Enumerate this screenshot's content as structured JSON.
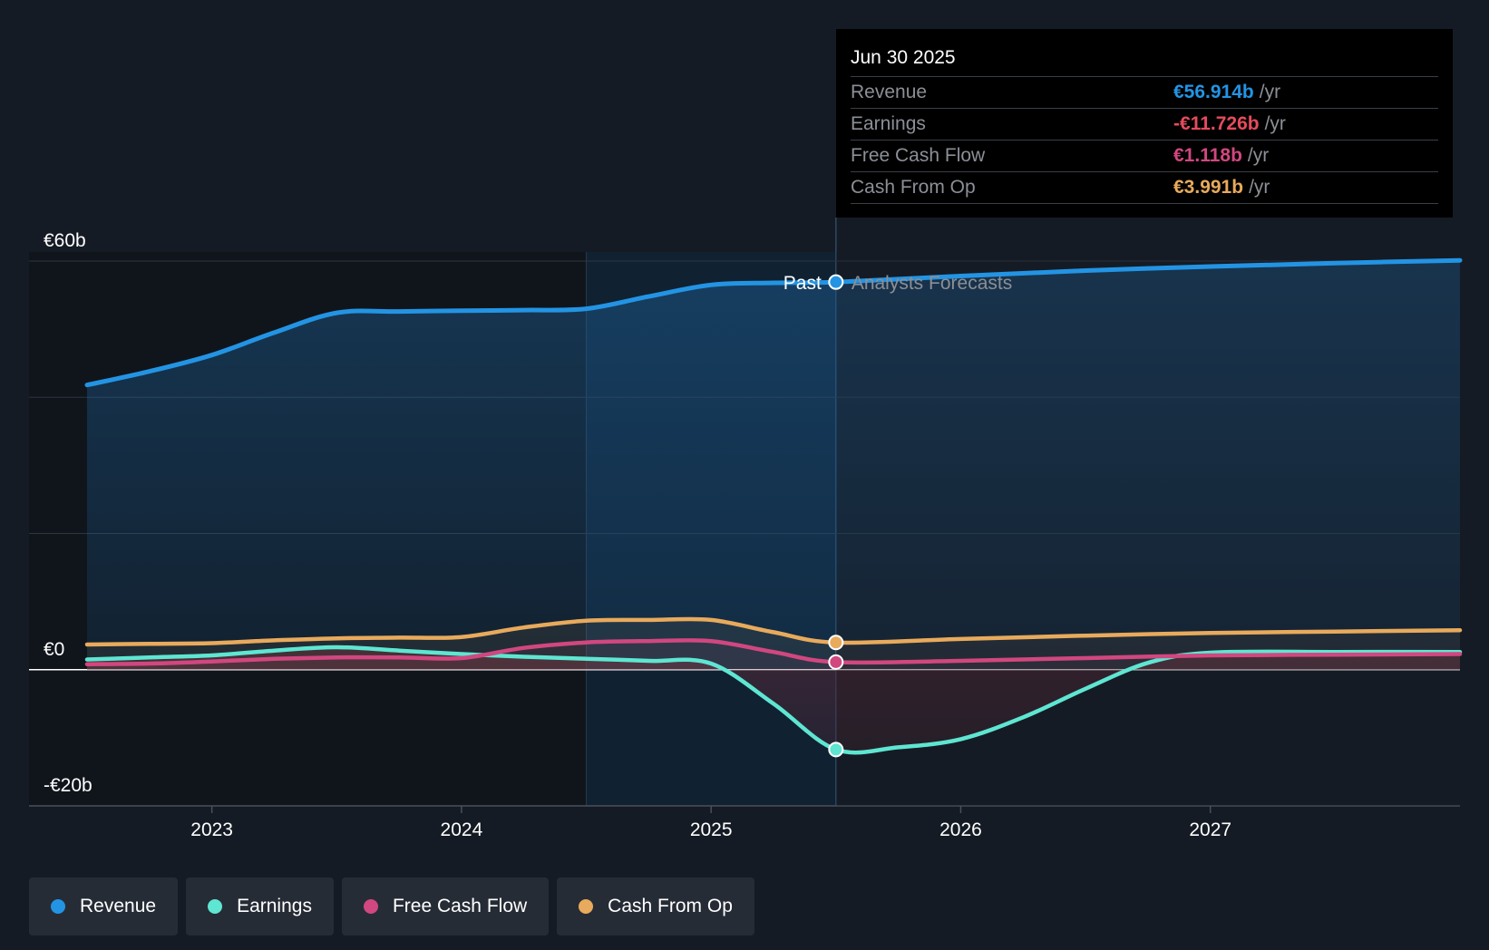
{
  "chart_data": {
    "type": "line",
    "y_tick_labels": [
      "€60b",
      "€0",
      "-€20b"
    ],
    "ylim": [
      -20,
      60
    ],
    "x_tick_labels": [
      "2023",
      "2024",
      "2025",
      "2026",
      "2027"
    ],
    "divider_labels": {
      "past": "Past",
      "forecast": "Analysts Forecasts"
    },
    "past_cutoff": 2025.5,
    "series": [
      {
        "name": "Revenue",
        "color": "#2394e4",
        "x": [
          2022.5,
          2022.75,
          2023.0,
          2023.25,
          2023.5,
          2023.75,
          2024.0,
          2024.25,
          2024.5,
          2024.75,
          2025.0,
          2025.25,
          2025.5,
          2026.0,
          2026.5,
          2027.0,
          2027.5,
          2028.0
        ],
        "y": [
          41.8,
          43.8,
          46.2,
          49.5,
          52.4,
          52.6,
          52.7,
          52.8,
          53.0,
          54.8,
          56.5,
          56.8,
          56.914,
          57.8,
          58.6,
          59.2,
          59.7,
          60.1
        ]
      },
      {
        "name": "Earnings",
        "color": "#5ee6d2",
        "x": [
          2022.5,
          2022.75,
          2023.0,
          2023.25,
          2023.5,
          2023.75,
          2024.0,
          2024.25,
          2024.5,
          2024.75,
          2025.0,
          2025.25,
          2025.5,
          2025.75,
          2026.0,
          2026.25,
          2026.5,
          2026.75,
          2027.0,
          2027.5,
          2028.0
        ],
        "y": [
          1.5,
          1.8,
          2.1,
          2.8,
          3.3,
          2.8,
          2.3,
          1.9,
          1.6,
          1.3,
          0.9,
          -5.0,
          -11.726,
          -11.4,
          -10.2,
          -7.0,
          -2.8,
          1.0,
          2.5,
          2.6,
          2.6
        ]
      },
      {
        "name": "Free Cash Flow",
        "color": "#d1477f",
        "x": [
          2022.5,
          2022.75,
          2023.0,
          2023.25,
          2023.5,
          2023.75,
          2024.0,
          2024.25,
          2024.5,
          2024.75,
          2025.0,
          2025.25,
          2025.5,
          2026.0,
          2026.5,
          2027.0,
          2027.5,
          2028.0
        ],
        "y": [
          0.8,
          0.9,
          1.2,
          1.6,
          1.8,
          1.8,
          1.7,
          3.2,
          4.0,
          4.2,
          4.2,
          2.6,
          1.118,
          1.3,
          1.7,
          2.1,
          2.2,
          2.3
        ]
      },
      {
        "name": "Cash From Op",
        "color": "#e8aa5c",
        "x": [
          2022.5,
          2022.75,
          2023.0,
          2023.25,
          2023.5,
          2023.75,
          2024.0,
          2024.25,
          2024.5,
          2024.75,
          2025.0,
          2025.25,
          2025.5,
          2026.0,
          2026.5,
          2027.0,
          2027.5,
          2028.0
        ],
        "y": [
          3.7,
          3.8,
          3.9,
          4.3,
          4.6,
          4.7,
          4.8,
          6.2,
          7.2,
          7.3,
          7.3,
          5.5,
          3.991,
          4.5,
          5.0,
          5.4,
          5.6,
          5.8
        ]
      }
    ]
  },
  "tooltip": {
    "date": "Jun 30 2025",
    "rows": [
      {
        "label": "Revenue",
        "value": "€56.914b",
        "unit": "/yr",
        "color": "#2394e4"
      },
      {
        "label": "Earnings",
        "value": "-€11.726b",
        "unit": "/yr",
        "color": "#e64b5d"
      },
      {
        "label": "Free Cash Flow",
        "value": "€1.118b",
        "unit": "/yr",
        "color": "#d1477f"
      },
      {
        "label": "Cash From Op",
        "value": "€3.991b",
        "unit": "/yr",
        "color": "#e8aa5c"
      }
    ]
  },
  "legend": [
    {
      "label": "Revenue",
      "color": "#2394e4"
    },
    {
      "label": "Earnings",
      "color": "#5ee6d2"
    },
    {
      "label": "Free Cash Flow",
      "color": "#d1477f"
    },
    {
      "label": "Cash From Op",
      "color": "#e8aa5c"
    }
  ]
}
